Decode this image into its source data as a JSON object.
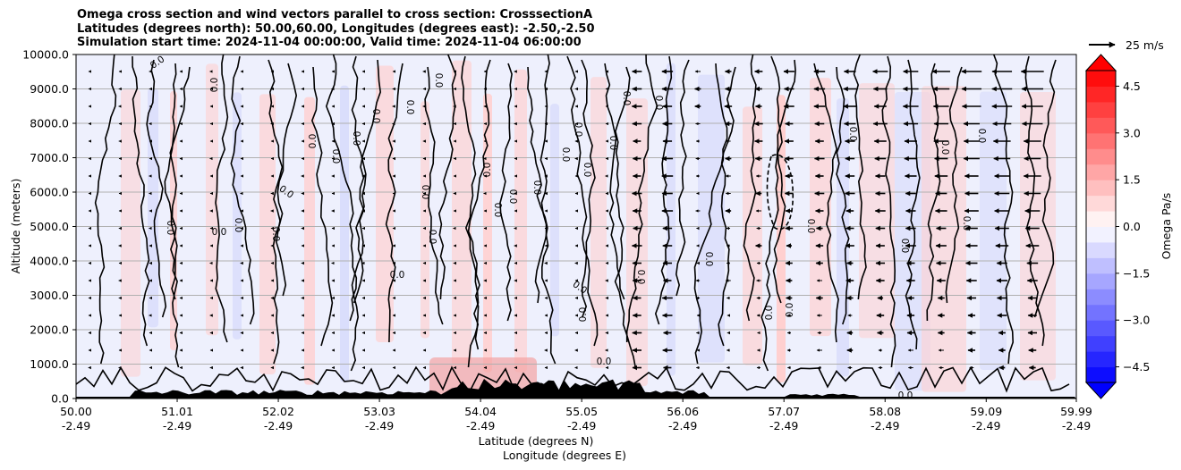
{
  "title_lines": [
    "Omega cross section and wind vectors parallel to cross section: CrosssectionA",
    "Latitudes (degrees north): 50.00,60.00, Longitudes (degrees east): -2.50,-2.50",
    "Simulation start time: 2024-11-04 00:00:00, Valid time: 2024-11-04 06:00:00"
  ],
  "quiver_key": "25 m/s",
  "chart_data": {
    "type": "contour_cross_section",
    "ylabel": "Altitude (meters)",
    "xlabel_lines": [
      "Latitude (degrees N)",
      "Longitude (degrees E)"
    ],
    "ylim": [
      0,
      10000
    ],
    "y_ticks": [
      "0.0",
      "1000.0",
      "2000.0",
      "3000.0",
      "4000.0",
      "5000.0",
      "6000.0",
      "7000.0",
      "8000.0",
      "9000.0",
      "10000.0"
    ],
    "x_ticks": [
      {
        "lat": "50.00",
        "lon": "-2.49"
      },
      {
        "lat": "51.01",
        "lon": "-2.49"
      },
      {
        "lat": "52.02",
        "lon": "-2.49"
      },
      {
        "lat": "53.03",
        "lon": "-2.49"
      },
      {
        "lat": "54.04",
        "lon": "-2.49"
      },
      {
        "lat": "55.05",
        "lon": "-2.49"
      },
      {
        "lat": "56.06",
        "lon": "-2.49"
      },
      {
        "lat": "57.07",
        "lon": "-2.49"
      },
      {
        "lat": "58.08",
        "lon": "-2.49"
      },
      {
        "lat": "59.09",
        "lon": "-2.49"
      },
      {
        "lat": "59.99",
        "lon": "-2.49"
      }
    ],
    "colorbar": {
      "label": "Omega Pa/s",
      "ticks": [
        "4.5",
        "3.0",
        "1.5",
        "0.0",
        "−1.5",
        "−3.0",
        "−4.5"
      ],
      "range": [
        -5.0,
        5.0
      ],
      "colormap": "bwr"
    },
    "contour_labels": [
      "0.0",
      "0.0",
      "0.0",
      "0.0",
      "0.0",
      "0.0",
      "0.0",
      "0.0",
      "0.0",
      "0.0",
      "0.0",
      "0.0",
      "0.0",
      "0.0",
      "0.0",
      "0.0",
      "0.0",
      "0.0",
      "0.0",
      "0.0",
      "0.0",
      "0.0",
      "0.0",
      "0.0",
      "0.0",
      "0.0",
      "0.0",
      "0.0",
      "0.0",
      "0.0",
      "0.0",
      "0.0",
      "0.0",
      "0.0",
      "0.0",
      "0.0",
      "0.0",
      "0.0",
      "0.0",
      "0.0"
    ],
    "grid": true,
    "colors": {
      "positive": "#ff0000",
      "negative": "#0000ff",
      "zero": "#ffffff",
      "terrain": "#000000"
    }
  }
}
